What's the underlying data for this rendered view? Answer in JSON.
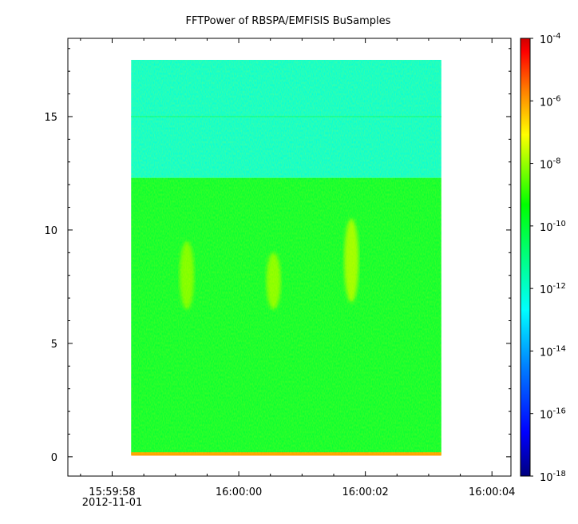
{
  "chart_data": {
    "type": "heatmap",
    "title": "FFTPower of RBSPA/EMFISIS  BuSamples",
    "xlabel": "",
    "ylabel": "",
    "x_tick_labels": [
      "15:59:58",
      "16:00:00",
      "16:00:02",
      "16:00:04"
    ],
    "x_date_label": "2012-11-01",
    "x_range_seconds": [
      "15:59:57.3",
      "16:00:04.3"
    ],
    "spectrogram_time_range": [
      "15:59:58.3",
      "16:00:03.2"
    ],
    "y_ticks": [
      0,
      5,
      10,
      15
    ],
    "ylim": [
      -0.85,
      18.45
    ],
    "spectrogram_freq_range": [
      0.1,
      17.5
    ],
    "colorbar": {
      "scale": "log",
      "range": [
        1e-18,
        0.0001
      ],
      "tick_bases": [
        "10",
        "10",
        "10",
        "10",
        "10",
        "10",
        "10",
        "10"
      ],
      "tick_exponents": [
        "-4",
        "-6",
        "-8",
        "-10",
        "-12",
        "-14",
        "-16",
        "-18"
      ],
      "colors": [
        "#00007f",
        "#0000ff",
        "#0080ff",
        "#00ffff",
        "#00ff80",
        "#00ff00",
        "#80ff00",
        "#ffff00",
        "#ff8000",
        "#ff0000",
        "#d00000"
      ]
    },
    "background_levels": [
      {
        "freq_range": [
          12.3,
          17.5
        ],
        "log10_power": -12.2
      },
      {
        "freq_range": [
          0.1,
          12.3
        ],
        "log10_power": -10.0
      },
      {
        "freq_range": [
          0.05,
          0.2
        ],
        "log10_power": -6.0
      }
    ],
    "features": [
      {
        "name": "burst",
        "time": "15:59:59.18",
        "freq_range": [
          6.5,
          9.5
        ],
        "log10_power": -8.3
      },
      {
        "name": "burst",
        "time": "16:00:00.55",
        "freq_range": [
          6.5,
          9.0
        ],
        "log10_power": -8.2
      },
      {
        "name": "burst",
        "time": "16:00:01.78",
        "freq_range": [
          6.8,
          10.5
        ],
        "log10_power": -8.0
      },
      {
        "name": "line",
        "time": "all",
        "freq": 15.0,
        "log10_power": -11.5
      }
    ]
  }
}
